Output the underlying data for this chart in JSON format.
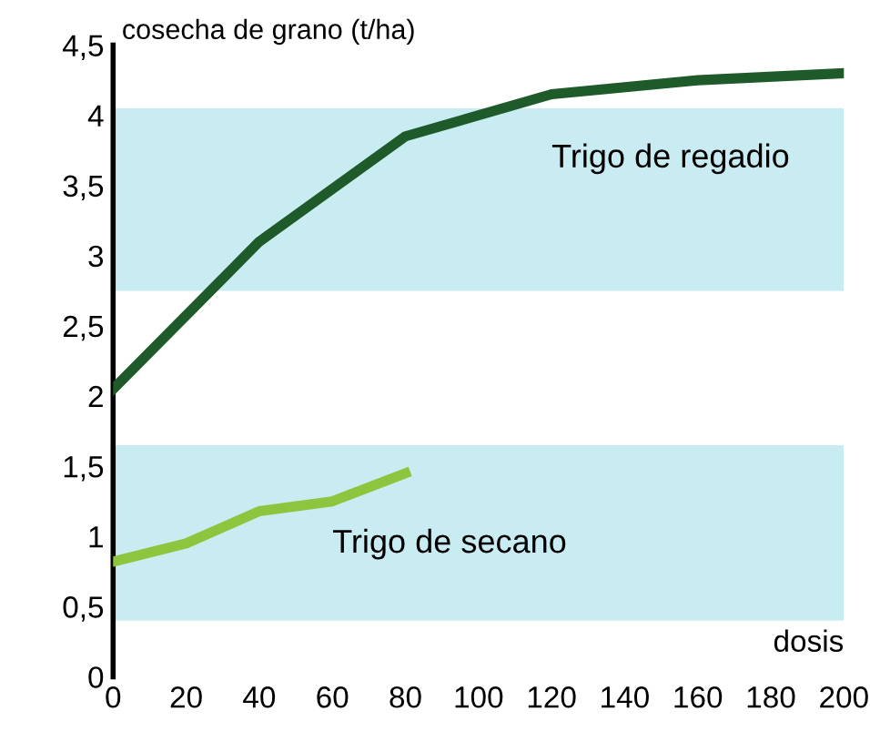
{
  "chart_data": {
    "type": "line",
    "xlabel": "dosis",
    "ylabel": "cosecha de grano (t/ha)",
    "series": [
      {
        "name": "Trigo de regadio",
        "color": "#1f5a2a",
        "x": [
          0,
          40,
          80,
          120,
          160,
          200
        ],
        "values": [
          2.05,
          3.1,
          3.85,
          4.15,
          4.25,
          4.3
        ]
      },
      {
        "name": "Trigo de secano",
        "color": "#8cc63f",
        "x": [
          0,
          20,
          40,
          60,
          80
        ],
        "values": [
          0.82,
          0.95,
          1.18,
          1.25,
          1.45
        ]
      }
    ],
    "bands": [
      {
        "axis": "y",
        "from": 2.75,
        "to": 4.05,
        "color": "#c8ecf2"
      },
      {
        "axis": "y",
        "from": 0.4,
        "to": 1.65,
        "color": "#c8ecf2"
      }
    ],
    "xlim": [
      0,
      200
    ],
    "ylim": [
      0,
      4.5
    ],
    "xticks": [
      0,
      20,
      40,
      60,
      80,
      100,
      120,
      140,
      160,
      180,
      200
    ],
    "yticks": [
      0,
      {
        "value": 0.5,
        "label": "0,5"
      },
      1,
      {
        "value": 1.5,
        "label": "1,5"
      },
      2,
      {
        "value": 2.5,
        "label": "2,5"
      },
      3,
      {
        "value": 3.5,
        "label": "3,5"
      },
      4,
      {
        "value": 4.5,
        "label": "4,5"
      }
    ],
    "grid": false,
    "legend": false,
    "marker": "none",
    "line_style": "solid"
  }
}
